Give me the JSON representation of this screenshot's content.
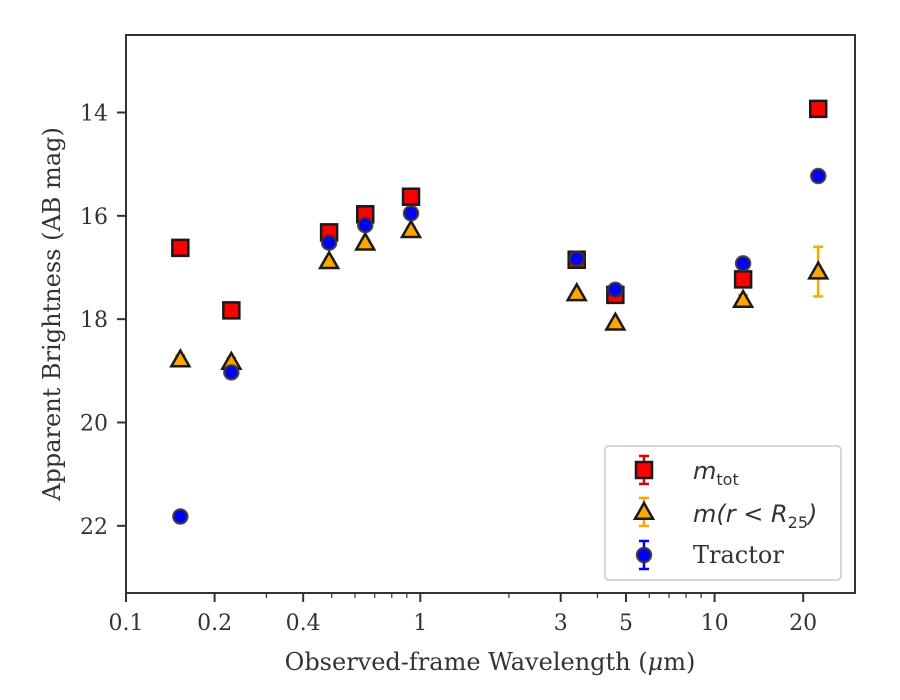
{
  "chart_data": {
    "type": "scatter",
    "title": "",
    "xlabel": "Observed-frame Wavelength (",
    "xlabel_mu": "μ",
    "xlabel_unit": "m)",
    "ylabel": "Apparent Brightness (AB mag)",
    "xscale": "log",
    "xlim": [
      0.1,
      30
    ],
    "ylim": [
      23.3,
      12.5
    ],
    "y_inverted": true,
    "grid": false,
    "legend_position": "lower-right",
    "x_ticks": [
      {
        "value": 0.1,
        "label": "0.1"
      },
      {
        "value": 0.2,
        "label": "0.2"
      },
      {
        "value": 0.4,
        "label": "0.4"
      },
      {
        "value": 1,
        "label": "1"
      },
      {
        "value": 3,
        "label": "3"
      },
      {
        "value": 5,
        "label": "5"
      },
      {
        "value": 10,
        "label": "10"
      },
      {
        "value": 20,
        "label": "20"
      }
    ],
    "y_ticks": [
      {
        "value": 14,
        "label": "14"
      },
      {
        "value": 16,
        "label": "16"
      },
      {
        "value": 18,
        "label": "18"
      },
      {
        "value": 20,
        "label": "20"
      },
      {
        "value": 22,
        "label": "22"
      }
    ],
    "series": [
      {
        "name": "m_tot",
        "legend_math": "m",
        "legend_sub": "tot",
        "marker": "square",
        "color": "#ff0000",
        "err_color": "#e00000",
        "points": [
          {
            "x": 0.153,
            "y": 16.62,
            "err": 0.05
          },
          {
            "x": 0.228,
            "y": 17.83,
            "err": 0.05
          },
          {
            "x": 0.49,
            "y": 16.32,
            "err": 0.05
          },
          {
            "x": 0.65,
            "y": 15.97,
            "err": 0.05
          },
          {
            "x": 0.93,
            "y": 15.63,
            "err": 0.05
          },
          {
            "x": 3.4,
            "y": 16.85,
            "err": 0.05
          },
          {
            "x": 4.6,
            "y": 17.53,
            "err": 0.05
          },
          {
            "x": 12.5,
            "y": 17.23,
            "err": 0.05
          },
          {
            "x": 22.5,
            "y": 13.93,
            "err": 0.05
          }
        ]
      },
      {
        "name": "m(r < R25)",
        "legend_math": "m(r < R",
        "legend_sub": "25",
        "legend_close": ")",
        "marker": "triangle",
        "color": "#ffa500",
        "err_color": "#ffa500",
        "points": [
          {
            "x": 0.153,
            "y": 18.78,
            "err": 0.08
          },
          {
            "x": 0.228,
            "y": 18.83,
            "err": 0.08
          },
          {
            "x": 0.49,
            "y": 16.88,
            "err": 0.05
          },
          {
            "x": 0.65,
            "y": 16.52,
            "err": 0.05
          },
          {
            "x": 0.93,
            "y": 16.28,
            "err": 0.05
          },
          {
            "x": 3.4,
            "y": 17.5,
            "err": 0.05
          },
          {
            "x": 4.6,
            "y": 18.07,
            "err": 0.05
          },
          {
            "x": 12.5,
            "y": 17.63,
            "err": 0.1
          },
          {
            "x": 22.5,
            "y": 17.08,
            "err": 0.48
          }
        ]
      },
      {
        "name": "Tractor",
        "marker": "circle",
        "color": "#0000ff",
        "err_color": "#0000ff",
        "points": [
          {
            "x": 0.153,
            "y": 21.82,
            "err": 0.05
          },
          {
            "x": 0.228,
            "y": 19.03,
            "err": 0.05
          },
          {
            "x": 0.49,
            "y": 16.52,
            "err": 0.05
          },
          {
            "x": 0.65,
            "y": 16.18,
            "err": 0.05
          },
          {
            "x": 0.93,
            "y": 15.95,
            "err": 0.05
          },
          {
            "x": 3.4,
            "y": 16.83,
            "err": 0.05
          },
          {
            "x": 4.6,
            "y": 17.43,
            "err": 0.05
          },
          {
            "x": 12.5,
            "y": 16.92,
            "err": 0.05
          },
          {
            "x": 22.5,
            "y": 15.23,
            "err": 0.05
          }
        ]
      }
    ]
  }
}
